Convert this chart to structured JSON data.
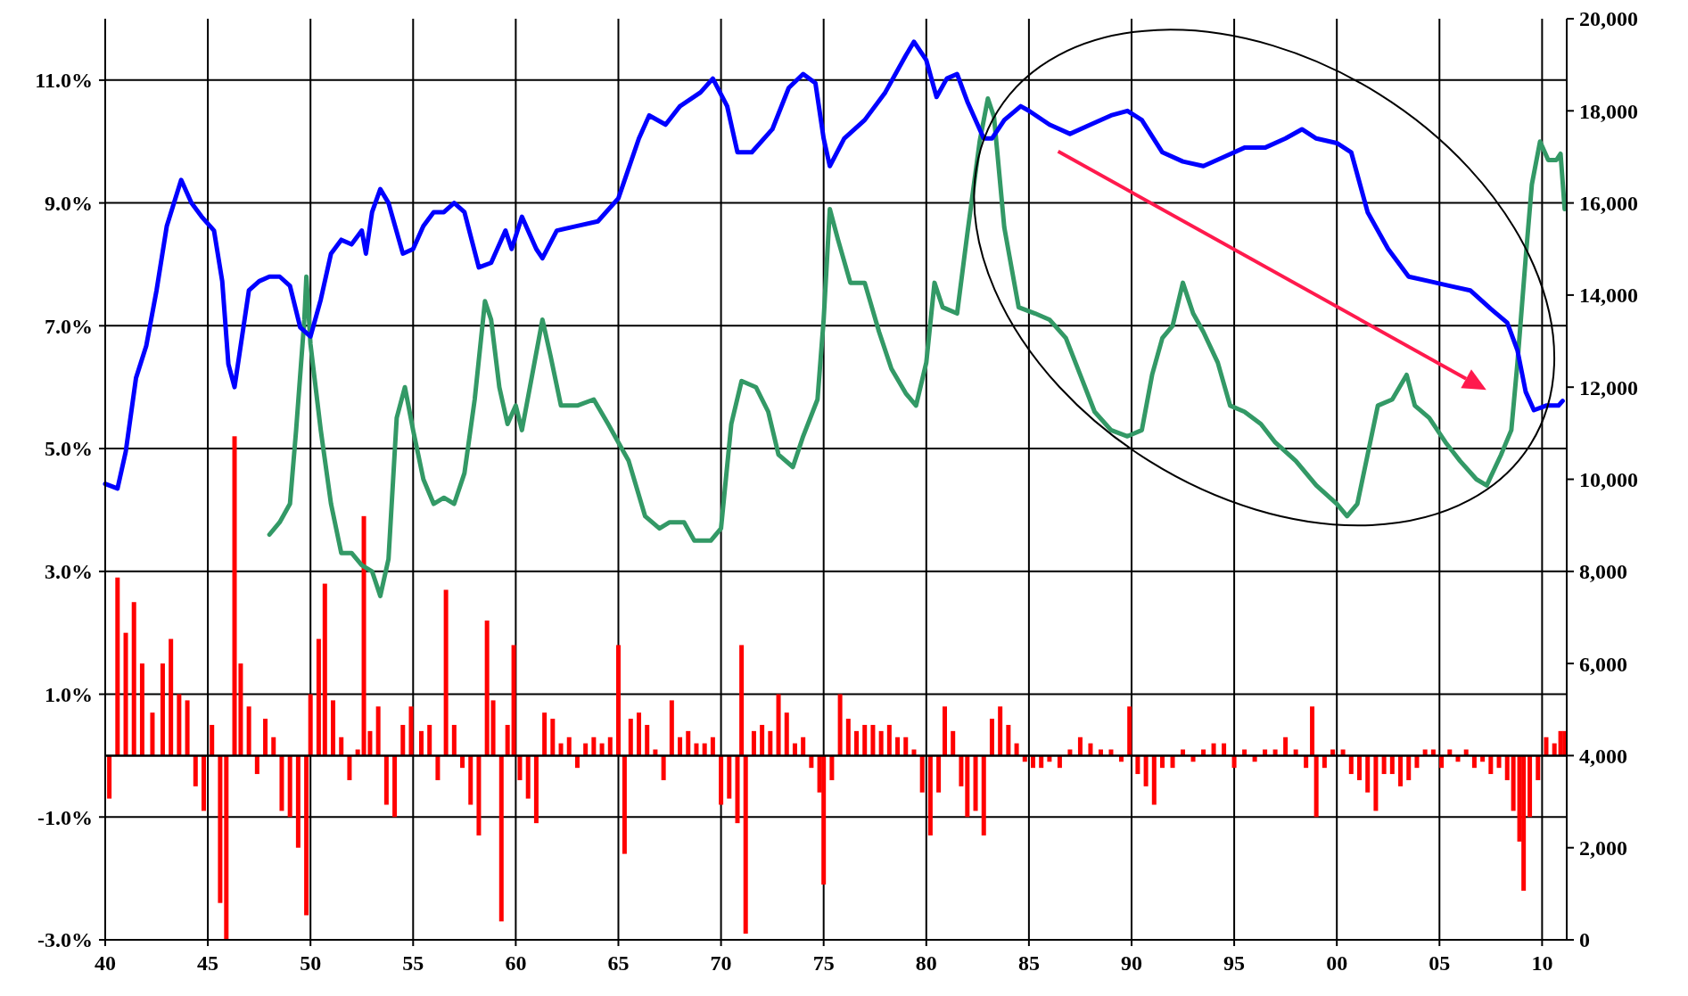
{
  "chart_data": {
    "type": "line",
    "grid": true,
    "line_style": "solid",
    "xlim": [
      1940,
      2011.2
    ],
    "xticks": [
      {
        "value": 1940,
        "label": "40"
      },
      {
        "value": 1945,
        "label": "45"
      },
      {
        "value": 1950,
        "label": "50"
      },
      {
        "value": 1955,
        "label": "55"
      },
      {
        "value": 1960,
        "label": "60"
      },
      {
        "value": 1965,
        "label": "65"
      },
      {
        "value": 1970,
        "label": "70"
      },
      {
        "value": 1975,
        "label": "75"
      },
      {
        "value": 1980,
        "label": "80"
      },
      {
        "value": 1985,
        "label": "85"
      },
      {
        "value": 1990,
        "label": "90"
      },
      {
        "value": 1995,
        "label": "95"
      },
      {
        "value": 2000,
        "label": "00"
      },
      {
        "value": 2005,
        "label": "05"
      },
      {
        "value": 2010,
        "label": "10"
      }
    ],
    "ylim": [
      -3,
      12
    ],
    "yticks": [
      {
        "value": -3,
        "label": "-3.0%"
      },
      {
        "value": -1,
        "label": "-1.0%"
      },
      {
        "value": 1,
        "label": "1.0%"
      },
      {
        "value": 3,
        "label": "3.0%"
      },
      {
        "value": 5,
        "label": "5.0%"
      },
      {
        "value": 7,
        "label": "7.0%"
      },
      {
        "value": 9,
        "label": "9.0%"
      },
      {
        "value": 11,
        "label": "11.0%"
      }
    ],
    "y2lim": [
      0,
      20000
    ],
    "y2ticks": [
      {
        "value": 0,
        "label": "0"
      },
      {
        "value": 2000,
        "label": "2,000"
      },
      {
        "value": 4000,
        "label": "4,000"
      },
      {
        "value": 6000,
        "label": "6,000"
      },
      {
        "value": 8000,
        "label": "8,000"
      },
      {
        "value": 10000,
        "label": "10,000"
      },
      {
        "value": 12000,
        "label": "12,000"
      },
      {
        "value": 14000,
        "label": "14,000"
      },
      {
        "value": 16000,
        "label": "16,000"
      },
      {
        "value": 18000,
        "label": "18,000"
      },
      {
        "value": 20000,
        "label": "20,000"
      }
    ],
    "ref_lines": [
      {
        "axis": "y",
        "value": 0,
        "color": "#000000"
      }
    ],
    "series": [
      {
        "type": "bar",
        "color": "#ff0000",
        "x": [
          1940.2,
          1940.6,
          1941.0,
          1941.4,
          1941.8,
          1942.3,
          1942.8,
          1943.2,
          1943.6,
          1944.0,
          1944.4,
          1944.8,
          1945.2,
          1945.6,
          1945.9,
          1946.3,
          1946.6,
          1947.0,
          1947.4,
          1947.8,
          1948.2,
          1948.6,
          1949.0,
          1949.4,
          1949.8,
          1950.0,
          1950.4,
          1950.7,
          1951.1,
          1951.5,
          1951.9,
          1952.3,
          1952.6,
          1952.9,
          1953.3,
          1953.7,
          1954.1,
          1954.5,
          1954.9,
          1955.4,
          1955.8,
          1956.2,
          1956.6,
          1957.0,
          1957.4,
          1957.8,
          1958.2,
          1958.6,
          1958.9,
          1959.3,
          1959.6,
          1959.9,
          1960.2,
          1960.6,
          1961.0,
          1961.4,
          1961.8,
          1962.2,
          1962.6,
          1963.0,
          1963.4,
          1963.8,
          1964.2,
          1964.6,
          1965.0,
          1965.3,
          1965.6,
          1966.0,
          1966.4,
          1966.8,
          1967.2,
          1967.6,
          1968.0,
          1968.4,
          1968.8,
          1969.2,
          1969.6,
          1970.0,
          1970.4,
          1970.8,
          1971.0,
          1971.2,
          1971.6,
          1972.0,
          1972.4,
          1972.8,
          1973.2,
          1973.6,
          1974.0,
          1974.4,
          1974.8,
          1975.0,
          1975.4,
          1975.8,
          1976.2,
          1976.6,
          1977.0,
          1977.4,
          1977.8,
          1978.2,
          1978.6,
          1979.0,
          1979.4,
          1979.8,
          1980.2,
          1980.6,
          1980.9,
          1981.3,
          1981.7,
          1982.0,
          1982.4,
          1982.8,
          1983.2,
          1983.6,
          1984.0,
          1984.4,
          1984.8,
          1985.2,
          1985.6,
          1986.0,
          1986.5,
          1987.0,
          1987.5,
          1988.0,
          1988.5,
          1989.0,
          1989.5,
          1989.9,
          1990.3,
          1990.7,
          1991.1,
          1991.5,
          1992.0,
          1992.5,
          1993.0,
          1993.5,
          1994.0,
          1994.5,
          1995.0,
          1995.5,
          1996.0,
          1996.5,
          1997.0,
          1997.5,
          1998.0,
          1998.5,
          1998.8,
          1999.0,
          1999.4,
          1999.8,
          2000.3,
          2000.7,
          2001.1,
          2001.5,
          2001.9,
          2002.3,
          2002.7,
          2003.1,
          2003.5,
          2003.9,
          2004.3,
          2004.7,
          2005.1,
          2005.5,
          2005.9,
          2006.3,
          2006.7,
          2007.1,
          2007.5,
          2007.9,
          2008.3,
          2008.6,
          2008.9,
          2009.1,
          2009.4,
          2009.8,
          2010.2,
          2010.6,
          2010.9,
          2011.1
        ],
        "values": [
          -0.7,
          2.9,
          2.0,
          2.5,
          1.5,
          0.7,
          1.5,
          1.9,
          1.0,
          0.9,
          -0.5,
          -0.9,
          0.5,
          -2.4,
          -3.0,
          5.2,
          1.5,
          0.8,
          -0.3,
          0.6,
          0.3,
          -0.9,
          -1.0,
          -1.5,
          -2.6,
          1.0,
          1.9,
          2.8,
          0.9,
          0.3,
          -0.4,
          0.1,
          3.9,
          0.4,
          0.8,
          -0.8,
          -1.0,
          0.5,
          0.8,
          0.4,
          0.5,
          -0.4,
          2.7,
          0.5,
          -0.2,
          -0.8,
          -1.3,
          2.2,
          0.9,
          -2.7,
          0.5,
          1.8,
          -0.4,
          -0.7,
          -1.1,
          0.7,
          0.6,
          0.2,
          0.3,
          -0.2,
          0.2,
          0.3,
          0.2,
          0.3,
          1.8,
          -1.6,
          0.6,
          0.7,
          0.5,
          0.1,
          -0.4,
          0.9,
          0.3,
          0.4,
          0.2,
          0.2,
          0.3,
          -0.8,
          -0.7,
          -1.1,
          1.8,
          -2.9,
          0.4,
          0.5,
          0.4,
          1.0,
          0.7,
          0.2,
          0.3,
          -0.2,
          -0.6,
          -2.1,
          -0.4,
          1.0,
          0.6,
          0.4,
          0.5,
          0.5,
          0.4,
          0.5,
          0.3,
          0.3,
          0.1,
          -0.6,
          -1.3,
          -0.6,
          0.8,
          0.4,
          -0.5,
          -1.0,
          -0.9,
          -1.3,
          0.6,
          0.8,
          0.5,
          0.2,
          -0.1,
          -0.2,
          -0.2,
          -0.1,
          -0.2,
          0.1,
          0.3,
          0.2,
          0.1,
          0.1,
          -0.1,
          0.8,
          -0.3,
          -0.5,
          -0.8,
          -0.2,
          -0.2,
          0.1,
          -0.1,
          0.1,
          0.2,
          0.2,
          -0.2,
          0.1,
          -0.1,
          0.1,
          0.1,
          0.3,
          0.1,
          -0.2,
          0.8,
          -1.0,
          -0.2,
          0.1,
          0.1,
          -0.3,
          -0.4,
          -0.6,
          -0.9,
          -0.3,
          -0.3,
          -0.5,
          -0.4,
          -0.2,
          0.1,
          0.1,
          -0.2,
          0.1,
          -0.1,
          0.1,
          -0.2,
          -0.1,
          -0.3,
          -0.2,
          -0.4,
          -0.9,
          -1.4,
          -2.2,
          -1.0,
          -0.4,
          0.3,
          0.2,
          0.4,
          0.4
        ]
      },
      {
        "color": "#339966",
        "x": [
          1948.0,
          1948.5,
          1949.0,
          1949.3,
          1949.7,
          1949.8,
          1950.0,
          1950.5,
          1951.0,
          1951.5,
          1952.0,
          1952.5,
          1953.0,
          1953.4,
          1953.8,
          1954.2,
          1954.6,
          1955.0,
          1955.5,
          1956.0,
          1956.5,
          1957.0,
          1957.5,
          1958.0,
          1958.5,
          1958.8,
          1959.2,
          1959.6,
          1960.0,
          1960.3,
          1960.8,
          1961.3,
          1961.7,
          1962.2,
          1963.0,
          1963.8,
          1964.5,
          1965.0,
          1965.5,
          1966.3,
          1967.0,
          1967.5,
          1968.2,
          1968.7,
          1969.5,
          1970.0,
          1970.5,
          1971.0,
          1971.7,
          1972.3,
          1972.8,
          1973.5,
          1974.0,
          1974.7,
          1975.0,
          1975.3,
          1975.7,
          1976.3,
          1977.0,
          1977.7,
          1978.3,
          1979.0,
          1979.5,
          1980.0,
          1980.4,
          1980.8,
          1981.5,
          1982.0,
          1982.6,
          1983.0,
          1983.3,
          1983.8,
          1984.5,
          1985.3,
          1986.0,
          1986.8,
          1987.5,
          1988.2,
          1989.0,
          1989.8,
          1990.5,
          1991.0,
          1991.5,
          1992.0,
          1992.5,
          1993.0,
          1993.5,
          1994.2,
          1994.8,
          1995.5,
          1996.3,
          1997.0,
          1998.0,
          1999.0,
          2000.0,
          2000.5,
          2001.0,
          2001.5,
          2002.0,
          2002.7,
          2003.4,
          2003.8,
          2004.5,
          2005.3,
          2006.0,
          2006.8,
          2007.3,
          2008.0,
          2008.5,
          2008.8,
          2009.2,
          2009.5,
          2009.9,
          2010.3,
          2010.7,
          2010.9,
          2011.1
        ],
        "values": [
          3.6,
          3.8,
          4.1,
          5.3,
          7.1,
          7.8,
          6.7,
          5.3,
          4.1,
          3.3,
          3.3,
          3.1,
          3.0,
          2.6,
          3.2,
          5.5,
          6.0,
          5.3,
          4.5,
          4.1,
          4.2,
          4.1,
          4.6,
          5.8,
          7.4,
          7.1,
          6.0,
          5.4,
          5.7,
          5.3,
          6.2,
          7.1,
          6.5,
          5.7,
          5.7,
          5.8,
          5.4,
          5.1,
          4.8,
          3.9,
          3.7,
          3.8,
          3.8,
          3.5,
          3.5,
          3.7,
          5.4,
          6.1,
          6.0,
          5.6,
          4.9,
          4.7,
          5.2,
          5.8,
          7.1,
          8.9,
          8.4,
          7.7,
          7.7,
          6.9,
          6.3,
          5.9,
          5.7,
          6.4,
          7.7,
          7.3,
          7.2,
          8.5,
          10.0,
          10.7,
          10.4,
          8.6,
          7.3,
          7.2,
          7.1,
          6.8,
          6.2,
          5.6,
          5.3,
          5.2,
          5.3,
          6.2,
          6.8,
          7.0,
          7.7,
          7.2,
          6.9,
          6.4,
          5.7,
          5.6,
          5.4,
          5.1,
          4.8,
          4.4,
          4.1,
          3.9,
          4.1,
          4.9,
          5.7,
          5.8,
          6.2,
          5.7,
          5.5,
          5.1,
          4.8,
          4.5,
          4.4,
          4.9,
          5.3,
          6.4,
          8.1,
          9.3,
          10.0,
          9.7,
          9.7,
          9.8,
          8.9
        ]
      },
      {
        "color": "#0000ff",
        "axis": "y2",
        "x": [
          1940.0,
          1940.6,
          1941.0,
          1941.5,
          1942.0,
          1942.5,
          1943.0,
          1943.7,
          1944.2,
          1944.7,
          1945.3,
          1945.7,
          1946.0,
          1946.3,
          1946.5,
          1947.0,
          1947.5,
          1948.0,
          1948.5,
          1949.0,
          1949.5,
          1950.0,
          1950.5,
          1951.0,
          1951.5,
          1952.0,
          1952.5,
          1952.7,
          1953.0,
          1953.4,
          1953.8,
          1954.5,
          1955.0,
          1955.5,
          1956.0,
          1956.5,
          1957.0,
          1957.5,
          1958.2,
          1958.8,
          1959.5,
          1959.8,
          1960.3,
          1961.0,
          1961.3,
          1962.0,
          1963.0,
          1964.0,
          1965.0,
          1966.0,
          1966.5,
          1967.3,
          1968.0,
          1969.0,
          1969.6,
          1970.3,
          1970.8,
          1971.5,
          1972.5,
          1973.3,
          1974.0,
          1974.6,
          1975.0,
          1975.3,
          1976.0,
          1977.0,
          1978.0,
          1979.0,
          1979.4,
          1980.0,
          1980.5,
          1981.0,
          1981.5,
          1982.0,
          1982.8,
          1983.2,
          1983.8,
          1984.6,
          1985.0,
          1986.0,
          1987.0,
          1988.0,
          1989.0,
          1989.8,
          1990.5,
          1991.5,
          1992.5,
          1993.5,
          1994.5,
          1995.5,
          1996.5,
          1997.5,
          1998.3,
          1999.0,
          2000.0,
          2000.7,
          2001.5,
          2002.5,
          2003.5,
          2004.5,
          2005.5,
          2006.5,
          2007.5,
          2008.3,
          2008.8,
          2009.2,
          2009.6,
          2010.2,
          2010.8,
          2011.0
        ],
        "values": [
          9900,
          9800,
          10600,
          12200,
          12900,
          14100,
          15500,
          16500,
          16000,
          15700,
          15400,
          14300,
          12500,
          12000,
          12600,
          14100,
          14300,
          14400,
          14400,
          14200,
          13300,
          13100,
          13900,
          14900,
          15200,
          15100,
          15400,
          14900,
          15800,
          16300,
          16000,
          14900,
          15000,
          15500,
          15800,
          15800,
          16000,
          15800,
          14600,
          14700,
          15400,
          15000,
          15700,
          15000,
          14800,
          15400,
          15500,
          15600,
          16100,
          17400,
          17900,
          17700,
          18100,
          18400,
          18700,
          18100,
          17100,
          17100,
          17600,
          18500,
          18800,
          18600,
          17400,
          16800,
          17400,
          17800,
          18400,
          19200,
          19500,
          19100,
          18300,
          18700,
          18800,
          18200,
          17400,
          17400,
          17800,
          18100,
          18000,
          17700,
          17500,
          17700,
          17900,
          18000,
          17800,
          17100,
          16900,
          16800,
          17000,
          17200,
          17200,
          17400,
          17600,
          17400,
          17300,
          17100,
          15800,
          15000,
          14400,
          14300,
          14200,
          14100,
          13700,
          13400,
          12800,
          11900,
          11500,
          11600,
          11600,
          11700
        ]
      }
    ]
  }
}
